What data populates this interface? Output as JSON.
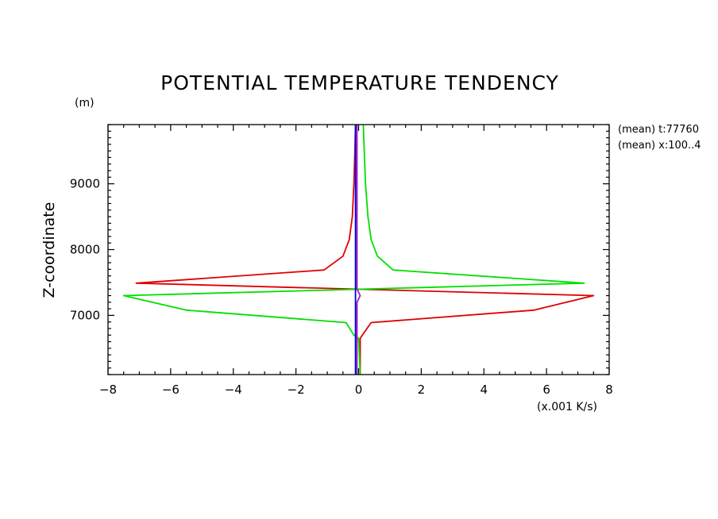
{
  "chart_data": {
    "type": "line",
    "title": "POTENTIAL TEMPERATURE TENDENCY",
    "ylabel": "Z-coordinate",
    "yunit": "(m)",
    "xunit": "(x.001 K/s)",
    "xlim": [
      -8,
      8
    ],
    "ylim": [
      6100,
      9900
    ],
    "xticks": [
      -8,
      -6,
      -4,
      -2,
      0,
      2,
      4,
      6,
      8
    ],
    "xtick_labels": [
      "−8",
      "−6",
      "−4",
      "−2",
      "0",
      "2",
      "4",
      "6",
      "8"
    ],
    "yticks": [
      7000,
      8000,
      9000
    ],
    "ytick_labels": [
      "7000",
      "8000",
      "9000"
    ],
    "annotations": [
      "(mean) t:77760",
      "(mean) x:100..4"
    ],
    "grid": false,
    "series": [
      {
        "color": "#e00000",
        "points": [
          [
            0.05,
            6100
          ],
          [
            0.05,
            6650
          ],
          [
            0.12,
            6700
          ],
          [
            0.4,
            6890
          ],
          [
            5.6,
            7080
          ],
          [
            7.5,
            7300
          ],
          [
            -7.1,
            7490
          ],
          [
            -1.1,
            7690
          ],
          [
            -0.5,
            7900
          ],
          [
            -0.3,
            8150
          ],
          [
            -0.2,
            8500
          ],
          [
            -0.15,
            9000
          ],
          [
            -0.12,
            9500
          ],
          [
            -0.1,
            9900
          ]
        ]
      },
      {
        "color": "#00e000",
        "points": [
          [
            0.05,
            6100
          ],
          [
            0.0,
            6650
          ],
          [
            -0.15,
            6700
          ],
          [
            -0.4,
            6890
          ],
          [
            -5.5,
            7080
          ],
          [
            -7.5,
            7300
          ],
          [
            7.2,
            7490
          ],
          [
            1.1,
            7690
          ],
          [
            0.6,
            7900
          ],
          [
            0.4,
            8150
          ],
          [
            0.3,
            8500
          ],
          [
            0.22,
            9000
          ],
          [
            0.18,
            9500
          ],
          [
            0.15,
            9900
          ]
        ]
      },
      {
        "color": "#0000e0",
        "points": [
          [
            -0.1,
            6100
          ],
          [
            -0.1,
            9900
          ]
        ]
      },
      {
        "color": "#a020c0",
        "points": [
          [
            -0.05,
            6100
          ],
          [
            -0.05,
            7200
          ],
          [
            0.05,
            7300
          ],
          [
            -0.05,
            7400
          ],
          [
            -0.05,
            9900
          ]
        ]
      }
    ]
  }
}
